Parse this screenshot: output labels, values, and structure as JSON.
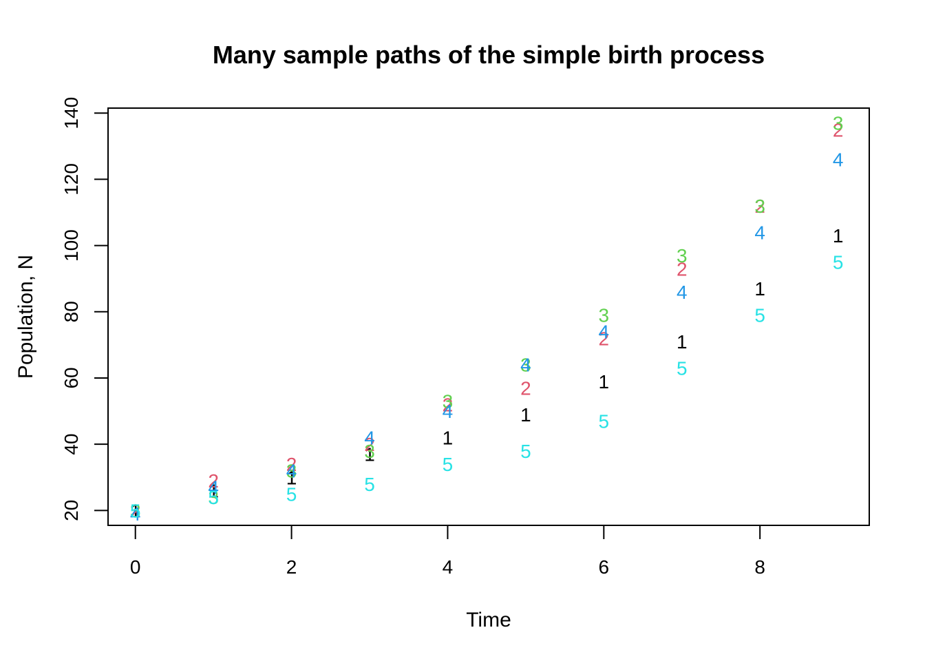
{
  "chart_data": {
    "type": "scatter",
    "title": "Many sample paths of the simple birth process",
    "xlabel": "Time",
    "ylabel": "Population, N",
    "xlim": [
      -0.35,
      9.4
    ],
    "ylim": [
      15.5,
      141.5
    ],
    "xticks": [
      0,
      2,
      4,
      6,
      8
    ],
    "yticks": [
      20,
      40,
      60,
      80,
      100,
      120,
      140
    ],
    "grid": false,
    "legend": "none",
    "marker_style": "series number as text",
    "x": [
      0,
      1,
      2,
      3,
      4,
      5,
      6,
      7,
      8,
      9
    ],
    "series": [
      {
        "label": "1",
        "color": "#000000",
        "values": [
          20,
          26,
          30,
          37,
          42,
          49,
          59,
          71,
          87,
          103
        ]
      },
      {
        "label": "2",
        "color": "#DF536B",
        "values": [
          20,
          29,
          34,
          40,
          52,
          57,
          72,
          93,
          112,
          135
        ]
      },
      {
        "label": "3",
        "color": "#61D04F",
        "values": [
          20,
          24,
          32,
          38,
          53,
          64,
          79,
          97,
          112,
          137
        ]
      },
      {
        "label": "4",
        "color": "#2297E6",
        "values": [
          19,
          27,
          32,
          42,
          50,
          64,
          74,
          86,
          104,
          126
        ]
      },
      {
        "label": "5",
        "color": "#28E2E5",
        "values": [
          20,
          24,
          25,
          28,
          34,
          38,
          47,
          63,
          79,
          95
        ]
      }
    ]
  }
}
